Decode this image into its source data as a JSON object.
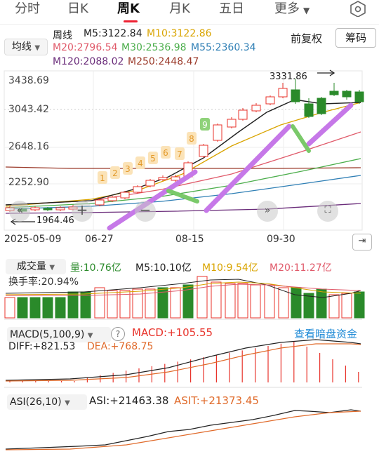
{
  "tabs": {
    "intraday": "分时",
    "daily": "日K",
    "weekly": "周K",
    "monthly": "月K",
    "five_day": "五日",
    "more": "更多"
  },
  "ma_selector": {
    "label": "均线"
  },
  "legend": {
    "period": "周线",
    "m5": "M5:3122.84",
    "m10": "M10:3122.86",
    "m20": "M20:2796.54",
    "m30": "M30:2536.98",
    "m55": "M55:2360.34",
    "m120": "M120:2088.02",
    "m250": "M250:2448.47"
  },
  "buttons": {
    "adjust": "前复权",
    "chips": "筹码"
  },
  "price_axis": {
    "p1": "3438.69",
    "p2": "3043.42",
    "p3": "2648.16",
    "p4": "2252.90"
  },
  "annotations": {
    "high": "3331.86",
    "low": "1964.46"
  },
  "signal_numbers": [
    "1",
    "2",
    "3",
    "4",
    "5",
    "6",
    "7",
    "8",
    "9"
  ],
  "dates": {
    "d1": "2025-05-09",
    "d2": "06-27",
    "d3": "08-15",
    "d4": "09-30"
  },
  "volume": {
    "label": "成交量",
    "vol": "量:10.76亿",
    "m5": "M5:10.10亿",
    "m10": "M10:9.54亿",
    "m20": "M20:11.27亿",
    "turnover": "换手率:20.94%"
  },
  "macd": {
    "label": "MACD(5,100,9)",
    "value": "MACD:+105.55",
    "diff": "DIFF:+821.53",
    "dea": "DEA:+768.75",
    "link": "查看暗盘资金"
  },
  "asi": {
    "label": "ASI(26,10)",
    "asi": "ASI:+21463.38",
    "asit": "ASIT:+21373.45"
  },
  "colors": {
    "up": "#e8332b",
    "down": "#2a8a2a",
    "m5": "#222222",
    "m10": "#d9a400",
    "m20": "#e05a6a",
    "m30": "#4cae4c",
    "m55": "#2f7fb5",
    "m120": "#6a2c7a",
    "m250": "#9b3a2a",
    "accent": "#1f8ad6"
  },
  "chart_data": {
    "type": "candlestick",
    "y_ticks": [
      3438.69,
      3043.42,
      2648.16,
      2252.9
    ],
    "x_ticks": [
      "2025-05-09",
      "06-27",
      "08-15",
      "09-30"
    ],
    "high": 3331.86,
    "low": 1964.46
  }
}
